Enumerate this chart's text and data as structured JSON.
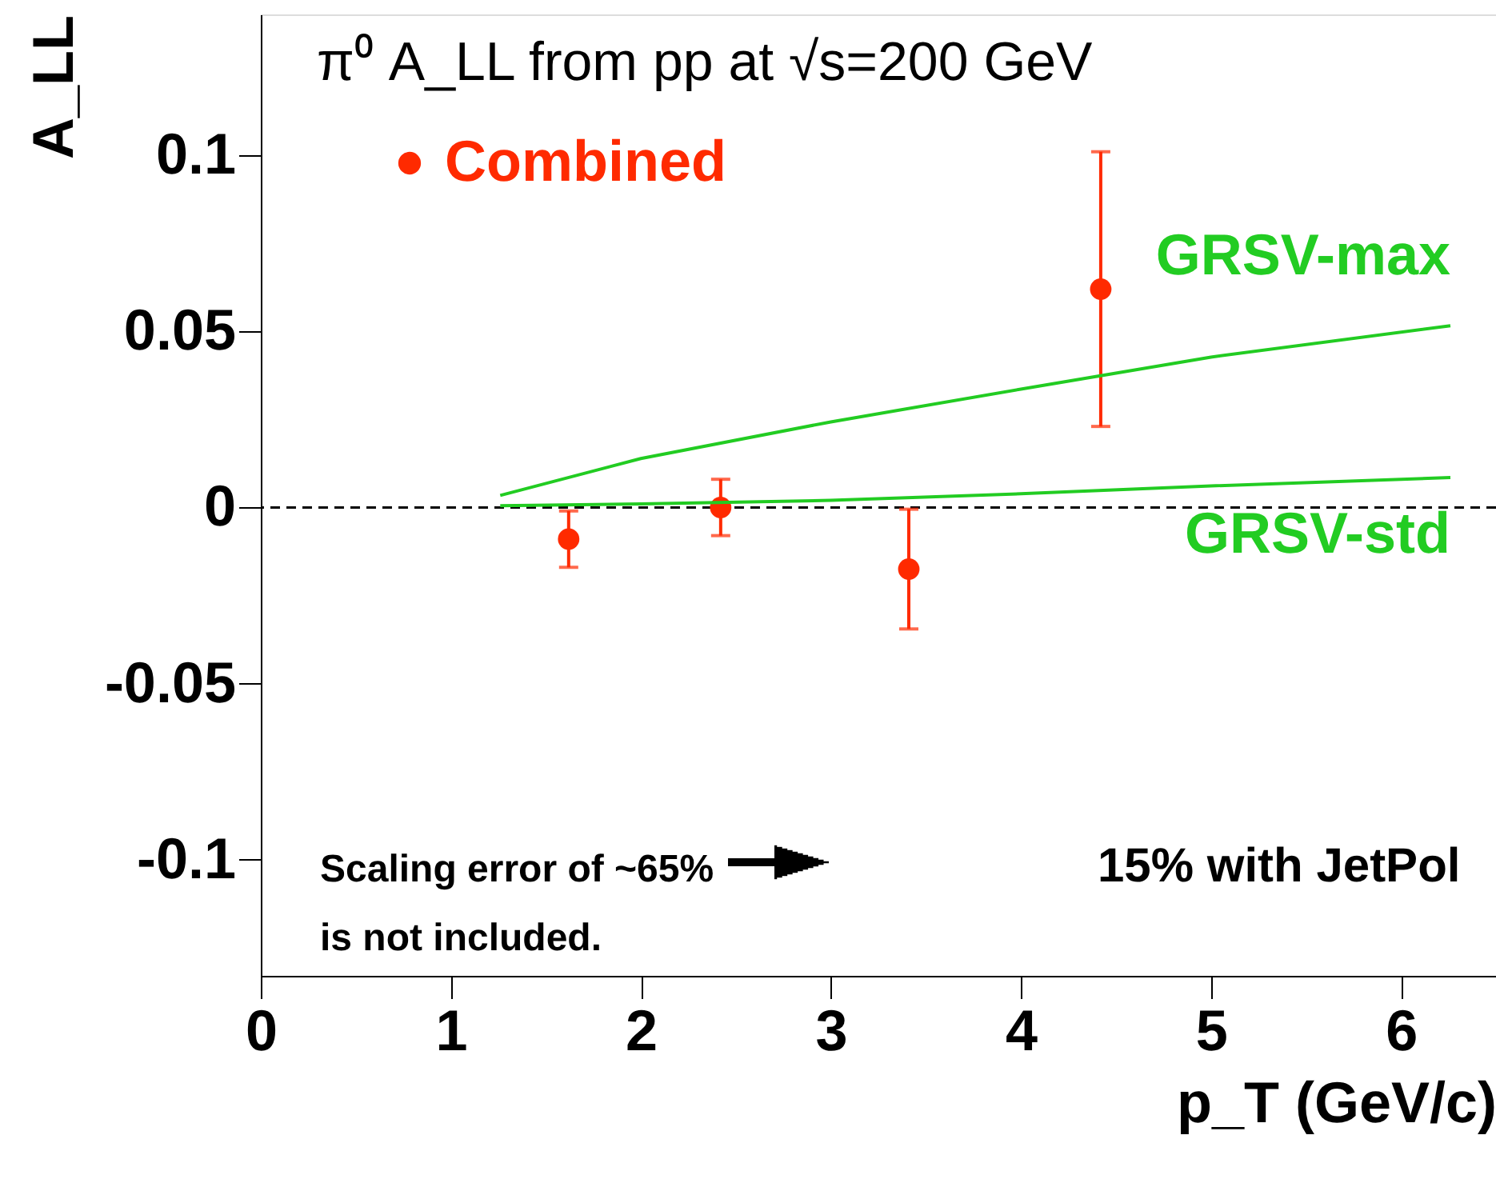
{
  "chart_data": {
    "type": "scatter",
    "title": "π⁰ A_LL from pp at √s=200 GeV",
    "xlabel": "p_T (GeV/c)",
    "ylabel": "A_LL",
    "series": [
      {
        "name": "Combined",
        "type": "scatter",
        "marker": "circle",
        "color": "#ff2a00",
        "x": [
          1.62,
          2.42,
          3.41,
          4.42
        ],
        "values": [
          -0.009,
          0.0,
          -0.0175,
          0.062
        ],
        "errors": [
          0.008,
          0.008,
          0.017,
          0.039
        ]
      },
      {
        "name": "GRSV-max",
        "type": "line",
        "color": "#22cc22",
        "x": [
          1.26,
          2,
          3,
          4,
          5,
          6.26
        ],
        "values": [
          0.0034,
          0.0139,
          0.0243,
          0.0336,
          0.0427,
          0.0516
        ]
      },
      {
        "name": "GRSV-std",
        "type": "line",
        "color": "#22cc22",
        "x": [
          1.26,
          2,
          3,
          4,
          5,
          6.26
        ],
        "values": [
          0.0005,
          0.001,
          0.002,
          0.0039,
          0.0061,
          0.0085
        ]
      }
    ],
    "xlim": [
      0,
      6.5
    ],
    "ylim": [
      -0.133,
      0.14
    ],
    "xticks": [
      0,
      1,
      2,
      3,
      4,
      5,
      6
    ],
    "yticks": [
      -0.1,
      -0.05,
      0,
      0.05,
      0.1
    ],
    "ref_lines": [
      {
        "axis": "y",
        "value": 0,
        "color": "#000000",
        "line_style": "dashed"
      }
    ],
    "annotations": [
      "Scaling error of ~65%\nis not included.",
      "15% with JetPol"
    ],
    "legend": "top left",
    "grid": false
  }
}
